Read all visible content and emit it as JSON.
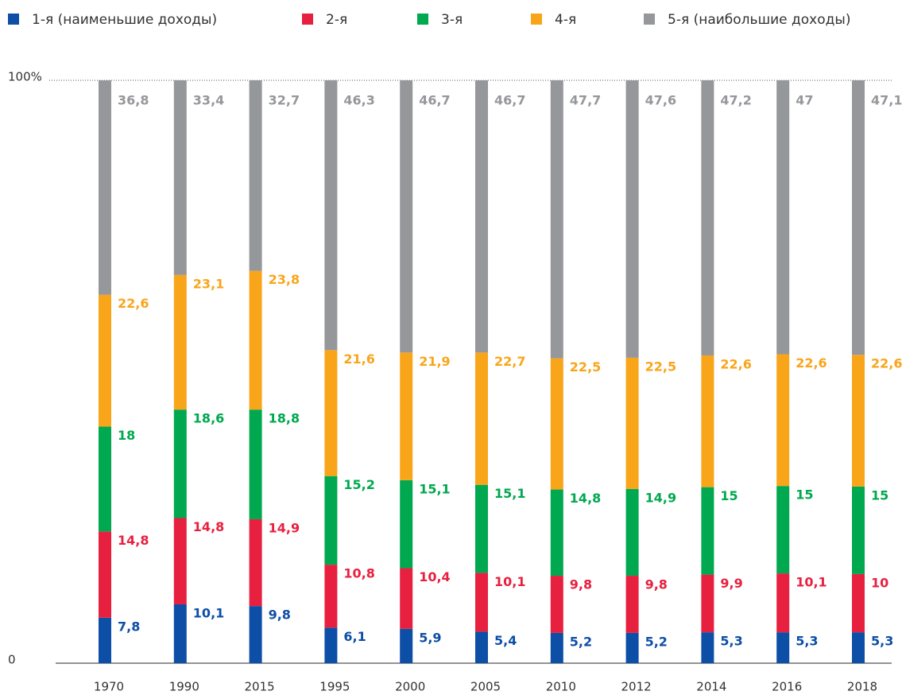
{
  "chart_data": {
    "type": "stacked_bar",
    "categories": [
      "1970",
      "1990",
      "2015",
      "1995",
      "2000",
      "2005",
      "2010",
      "2012",
      "2014",
      "2016",
      "2018"
    ],
    "series": [
      {
        "name": "1-я (наименьшие доходы)",
        "color": "#0d4ea6",
        "label_color": "#0d4ea6",
        "values": [
          7.8,
          10.1,
          9.8,
          6.1,
          5.9,
          5.4,
          5.2,
          5.2,
          5.3,
          5.3,
          5.3
        ],
        "value_labels": [
          "7,8",
          "10,1",
          "9,8",
          "6,1",
          "5,9",
          "5,4",
          "5,2",
          "5,2",
          "5,3",
          "5,3",
          "5,3"
        ]
      },
      {
        "name": "2-я",
        "color": "#e8203f",
        "label_color": "#e8203f",
        "values": [
          14.8,
          14.8,
          14.9,
          10.8,
          10.4,
          10.1,
          9.8,
          9.8,
          9.9,
          10.1,
          10
        ],
        "value_labels": [
          "14,8",
          "14,8",
          "14,9",
          "10,8",
          "10,4",
          "10,1",
          "9,8",
          "9,8",
          "9,9",
          "10,1",
          "10"
        ]
      },
      {
        "name": "3-я",
        "color": "#00a84f",
        "label_color": "#00a84f",
        "values": [
          18,
          18.6,
          18.8,
          15.2,
          15.1,
          15.1,
          14.8,
          14.9,
          15,
          15,
          15
        ],
        "value_labels": [
          "18",
          "18,6",
          "18,8",
          "15,2",
          "15,1",
          "15,1",
          "14,8",
          "14,9",
          "15",
          "15",
          "15"
        ]
      },
      {
        "name": "4-я",
        "color": "#f9a51a",
        "label_color": "#f9a51a",
        "values": [
          22.6,
          23.1,
          23.8,
          21.6,
          21.9,
          22.7,
          22.5,
          22.5,
          22.6,
          22.6,
          22.6
        ],
        "value_labels": [
          "22,6",
          "23,1",
          "23,8",
          "21,6",
          "21,9",
          "22,7",
          "22,5",
          "22,5",
          "22,6",
          "22,6",
          "22,6"
        ]
      },
      {
        "name": "5-я (наибольшие доходы)",
        "color": "#96979b",
        "label_color": "#96979b",
        "values": [
          36.8,
          33.4,
          32.7,
          46.3,
          46.7,
          46.7,
          47.7,
          47.6,
          47.2,
          47,
          47.1
        ],
        "value_labels": [
          "36,8",
          "33,4",
          "32,7",
          "46,3",
          "46,7",
          "46,7",
          "47,7",
          "47,6",
          "47,2",
          "47",
          "47,1"
        ]
      }
    ],
    "ylim": [
      0,
      100
    ],
    "yticks": [
      0,
      {
        "value": 100,
        "label": "100%"
      }
    ]
  }
}
